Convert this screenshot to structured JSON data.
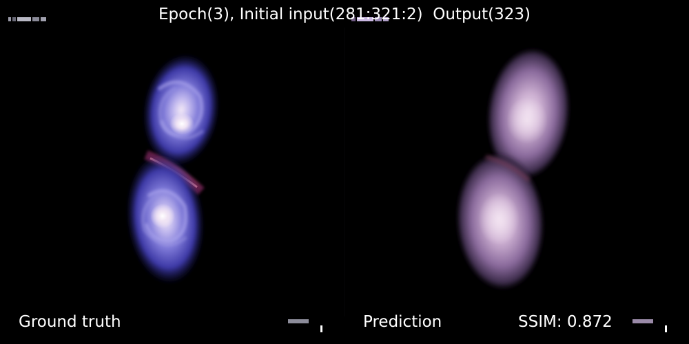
{
  "figure": {
    "title": "Epoch(3), Initial input(281:321:2)  Output(323)",
    "panels": [
      {
        "caption": "Ground truth"
      },
      {
        "caption": "Prediction"
      }
    ],
    "metric": {
      "label": "SSIM",
      "value": "0.872",
      "text": "SSIM: 0.872"
    }
  },
  "colors": {
    "background": "#000000",
    "ground_truth_halo": "#4a46b8",
    "ground_truth_core": "#f2e8f6",
    "ground_truth_arm": "#8a86e0",
    "bridge": "#a63a6a",
    "prediction_halo": "#8a6a9a",
    "prediction_core": "#e6cfe6",
    "caption_text": "#ffffff"
  }
}
